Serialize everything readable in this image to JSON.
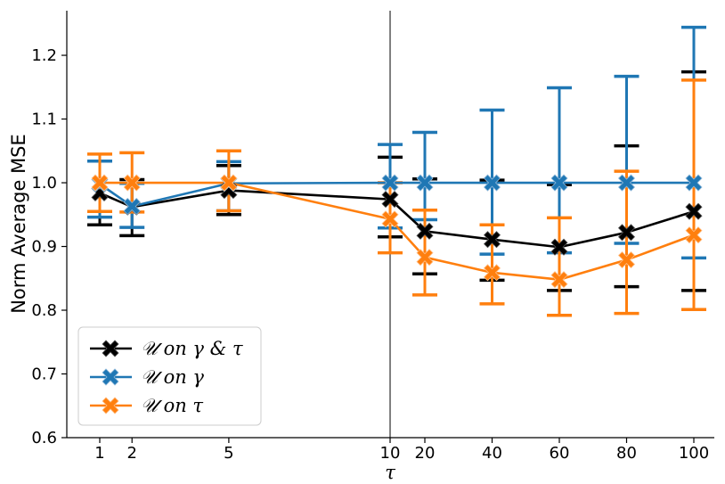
{
  "chart_data": {
    "type": "line",
    "title": "",
    "xlabel": "τ",
    "ylabel": "Norm Average MSE",
    "ylim": [
      0.6,
      1.27
    ],
    "yticks": [
      "0.6",
      "0.7",
      "0.8",
      "0.9",
      "1.0",
      "1.1",
      "1.2"
    ],
    "x_left": [
      "1",
      "2",
      "5",
      "10"
    ],
    "x_right": [
      "20",
      "40",
      "60",
      "80",
      "100"
    ],
    "series": [
      {
        "name": "𝒰 on γ & τ",
        "color": "#000000",
        "x": [
          "1",
          "2",
          "5",
          "10",
          "20",
          "40",
          "60",
          "80",
          "100"
        ],
        "values": [
          0.984,
          0.962,
          0.988,
          0.974,
          0.924,
          0.911,
          0.899,
          0.922,
          0.955
        ],
        "err_low": [
          0.934,
          0.917,
          0.95,
          0.915,
          0.857,
          0.847,
          0.831,
          0.837,
          0.831
        ],
        "err_high": [
          1.034,
          1.005,
          1.027,
          1.04,
          1.006,
          1.004,
          0.997,
          1.058,
          1.174
        ]
      },
      {
        "name": "𝒰 on γ",
        "color": "#1f77b4",
        "x": [
          "1",
          "2",
          "5",
          "10",
          "20",
          "40",
          "60",
          "80",
          "100"
        ],
        "values": [
          0.998,
          0.963,
          0.999,
          1.0,
          1.0,
          1.0,
          1.0,
          1.0,
          1.0
        ],
        "err_low": [
          0.946,
          0.93,
          0.956,
          0.929,
          0.942,
          0.888,
          0.89,
          0.905,
          0.882
        ],
        "err_high": [
          1.034,
          0.999,
          1.033,
          1.06,
          1.079,
          1.114,
          1.149,
          1.167,
          1.244
        ]
      },
      {
        "name": "𝒰 on τ",
        "color": "#ff7f0e",
        "x": [
          "1",
          "2",
          "5",
          "10",
          "20",
          "40",
          "60",
          "80",
          "100"
        ],
        "values": [
          1.0,
          1.0,
          1.0,
          0.943,
          0.883,
          0.859,
          0.848,
          0.879,
          0.918
        ],
        "err_low": [
          0.955,
          0.954,
          0.956,
          0.89,
          0.824,
          0.81,
          0.792,
          0.795,
          0.801
        ],
        "err_high": [
          1.045,
          1.047,
          1.05,
          1.0,
          0.957,
          0.934,
          0.945,
          1.018,
          1.161
        ]
      }
    ],
    "legend": {
      "placement": "bottom-left",
      "entries": [
        {
          "label": "𝒰 on γ & τ",
          "color": "#000000"
        },
        {
          "label": "𝒰 on γ",
          "color": "#1f77b4"
        },
        {
          "label": "𝒰 on τ",
          "color": "#ff7f0e"
        }
      ]
    }
  }
}
